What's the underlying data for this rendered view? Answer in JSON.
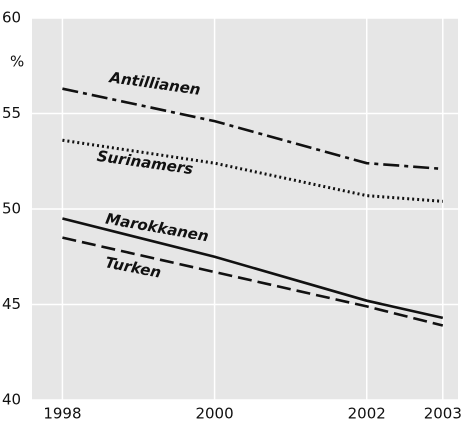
{
  "chart_data": {
    "type": "line",
    "ylabel": "%",
    "x": [
      1998,
      2000,
      2002,
      2003
    ],
    "series": [
      {
        "name": "Antillianen",
        "color": "#111111",
        "style": "dashdot",
        "values": [
          56.3,
          54.6,
          52.4,
          52.1
        ]
      },
      {
        "name": "Surinamers",
        "color": "#111111",
        "style": "dotted",
        "values": [
          53.6,
          52.4,
          50.7,
          50.4
        ]
      },
      {
        "name": "Marokkanen",
        "color": "#111111",
        "style": "solid",
        "values": [
          49.5,
          47.5,
          45.2,
          44.3
        ]
      },
      {
        "name": "Turken",
        "color": "#111111",
        "style": "dashed",
        "values": [
          48.5,
          46.7,
          44.9,
          43.9
        ]
      }
    ],
    "xlim": [
      1997.6,
      2003.2
    ],
    "xticks": [
      1998,
      2000,
      2002,
      2003
    ],
    "ylim": [
      40,
      60
    ],
    "yticks": [
      40,
      45,
      50,
      55,
      60
    ],
    "grid": true,
    "background": "#e6e6e6",
    "grid_color": "#ffffff"
  }
}
